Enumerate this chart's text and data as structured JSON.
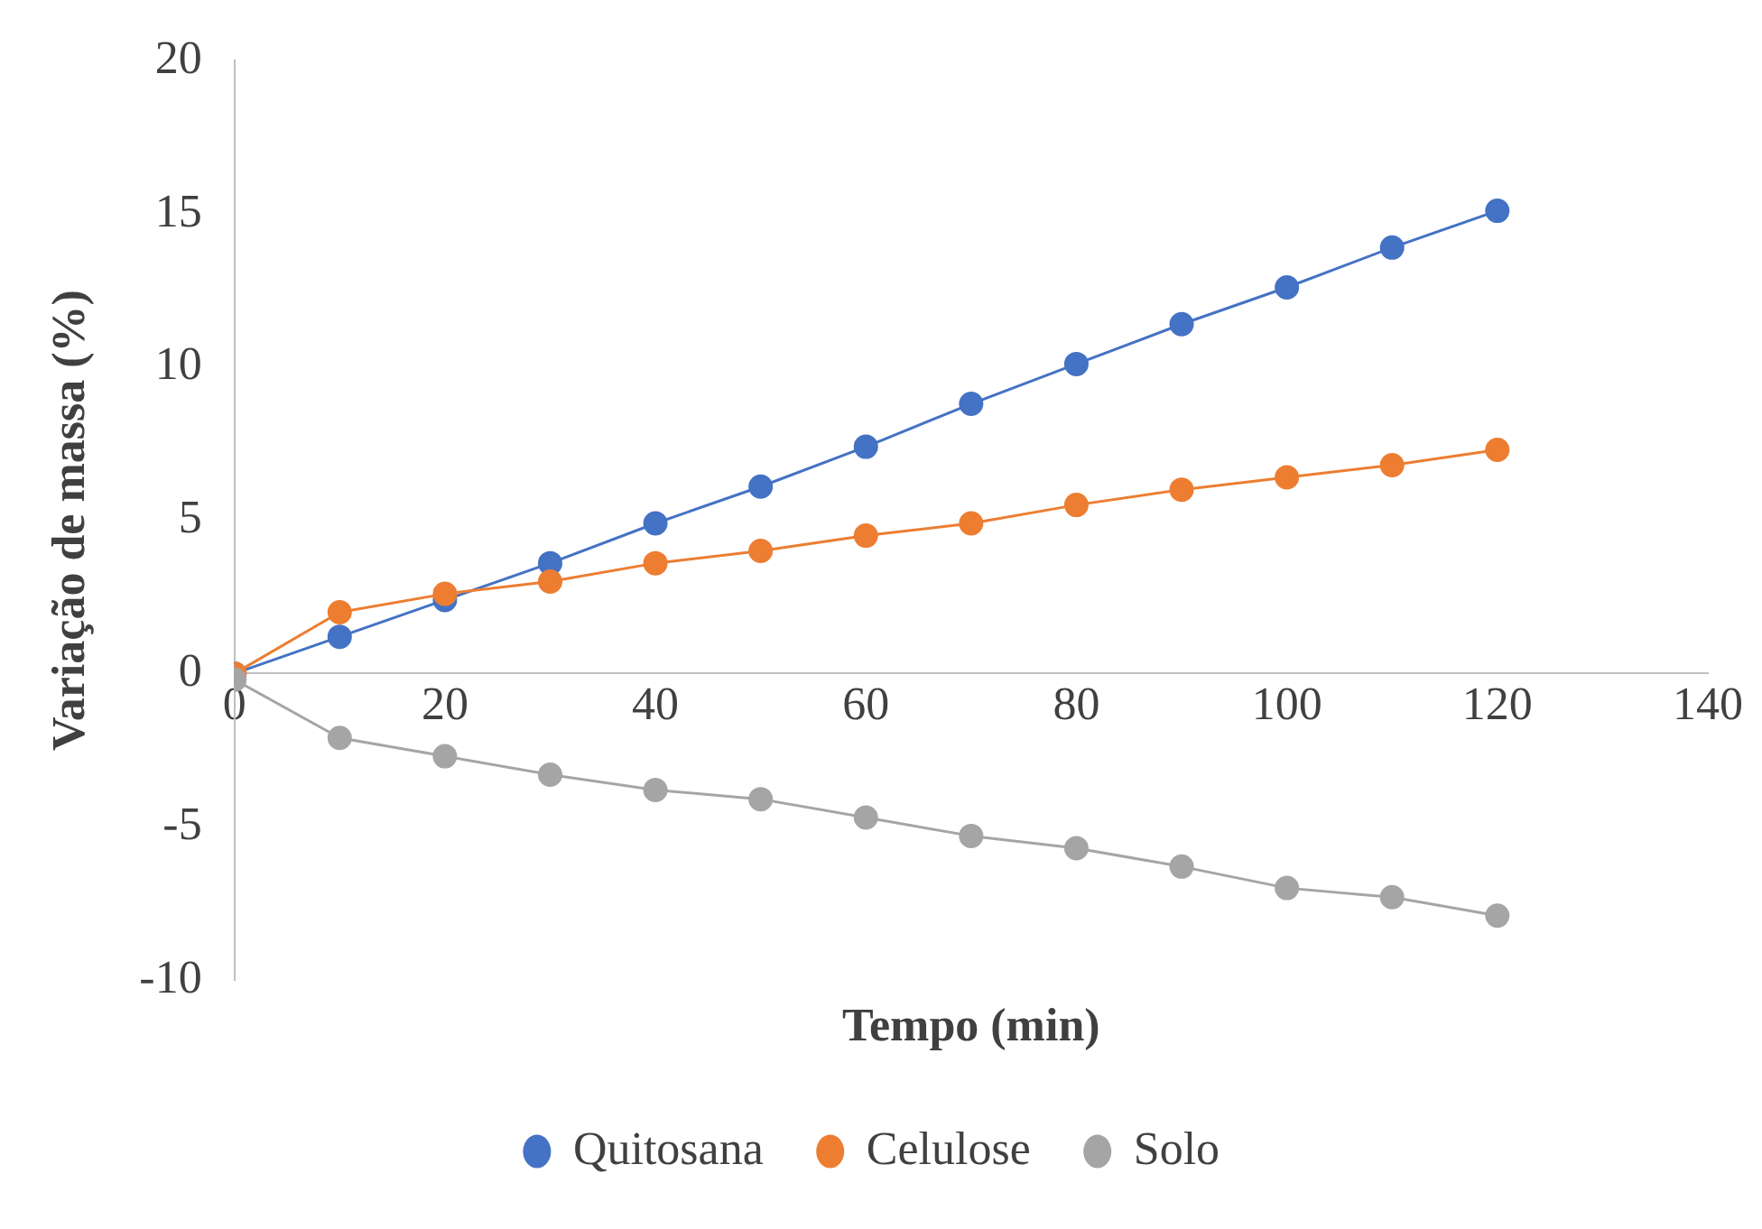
{
  "chart_data": {
    "type": "line",
    "xlabel": "Tempo (min)",
    "ylabel": "Variação de massa (%)",
    "x": [
      0,
      10,
      20,
      30,
      40,
      50,
      60,
      70,
      80,
      90,
      100,
      110,
      120
    ],
    "series": [
      {
        "name": "Quitosana",
        "color": "#4472c4",
        "values": [
          0,
          1.2,
          2.4,
          3.6,
          4.9,
          6.1,
          7.4,
          8.8,
          10.1,
          11.4,
          12.6,
          13.9,
          15.1
        ]
      },
      {
        "name": "Celulose",
        "color": "#ed7d31",
        "values": [
          0,
          2.0,
          2.6,
          3.0,
          3.6,
          4.0,
          4.5,
          4.9,
          5.5,
          6.0,
          6.4,
          6.8,
          7.3
        ]
      },
      {
        "name": "Solo",
        "color": "#a5a5a5",
        "values": [
          -0.2,
          -2.1,
          -2.7,
          -3.3,
          -3.8,
          -4.1,
          -4.7,
          -5.3,
          -5.7,
          -6.3,
          -7.0,
          -7.3,
          -7.9
        ]
      }
    ],
    "xlim": [
      0,
      140
    ],
    "xticks": [
      0,
      20,
      40,
      60,
      80,
      100,
      120,
      140
    ],
    "ylim": [
      -10,
      20
    ],
    "yticks": [
      -10,
      -5,
      0,
      5,
      10,
      15,
      20
    ],
    "grid": false,
    "legend": "bottom",
    "marker": "circle",
    "line_style": "solid"
  }
}
